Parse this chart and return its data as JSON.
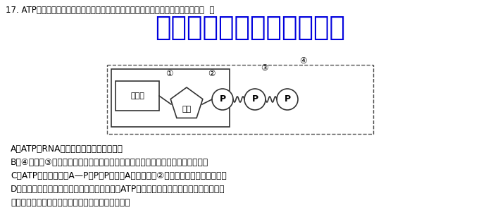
{
  "question_number": "17.",
  "question_text": "ATP是细胞内重要的高能磷酸化合物，其结构可用下图表示。下列叙述错误的是（  ）",
  "watermark": "微信公众号关注：趣找答案",
  "options": [
    "A．ATP与RNA彻底水解后的产物完全相同",
    "B．④转化为③是放能反应，该反应释放的能量可用于糖类、蛋白质等有机物的合成",
    "C．ATP的结构简式是A—P～P～P，其中A代表图中的②，～代表一种特殊的化学键",
    "D．细胞呼吸除可为生物体提供生命活动所需的ATP外，还是生物体代谢的枢纽，蛋白质、",
    "糖类和脂质的代谢都可以通过细胞呼吸过程联系起来"
  ],
  "label_1": "①",
  "label_2": "②",
  "label_3": "③",
  "label_4": "④",
  "adenine_label": "腺嘌呤",
  "ribose_label": "核糖",
  "p_label": "P",
  "bg_color": "#ffffff",
  "text_color": "#000000",
  "watermark_color": "#0000dd"
}
